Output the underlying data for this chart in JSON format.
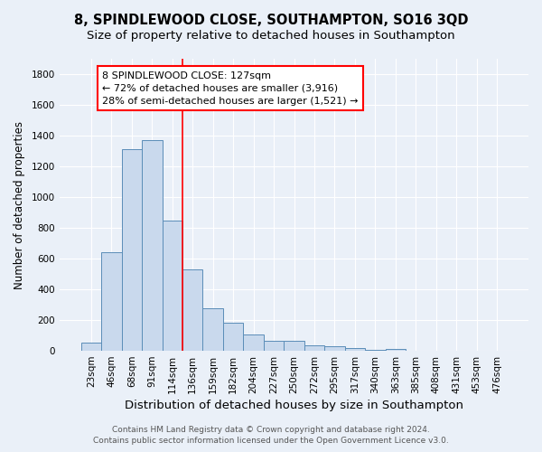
{
  "title": "8, SPINDLEWOOD CLOSE, SOUTHAMPTON, SO16 3QD",
  "subtitle": "Size of property relative to detached houses in Southampton",
  "xlabel": "Distribution of detached houses by size in Southampton",
  "ylabel": "Number of detached properties",
  "categories": [
    "23sqm",
    "46sqm",
    "68sqm",
    "91sqm",
    "114sqm",
    "136sqm",
    "159sqm",
    "182sqm",
    "204sqm",
    "227sqm",
    "250sqm",
    "272sqm",
    "295sqm",
    "317sqm",
    "340sqm",
    "363sqm",
    "385sqm",
    "408sqm",
    "431sqm",
    "453sqm",
    "476sqm"
  ],
  "values": [
    55,
    640,
    1310,
    1370,
    845,
    530,
    275,
    185,
    105,
    65,
    65,
    35,
    30,
    18,
    8,
    12,
    0,
    0,
    0,
    0,
    0
  ],
  "bar_color": "#c9d9ed",
  "bar_edge_color": "#5b8db8",
  "vline_color": "red",
  "vline_x_index": 4.5,
  "annotation_text": "8 SPINDLEWOOD CLOSE: 127sqm\n← 72% of detached houses are smaller (3,916)\n28% of semi-detached houses are larger (1,521) →",
  "annotation_box_color": "white",
  "annotation_box_edge_color": "red",
  "ylim": [
    0,
    1900
  ],
  "yticks": [
    0,
    200,
    400,
    600,
    800,
    1000,
    1200,
    1400,
    1600,
    1800
  ],
  "footer_line1": "Contains HM Land Registry data © Crown copyright and database right 2024.",
  "footer_line2": "Contains public sector information licensed under the Open Government Licence v3.0.",
  "background_color": "#eaf0f8",
  "grid_color": "white",
  "title_fontsize": 10.5,
  "subtitle_fontsize": 9.5,
  "xlabel_fontsize": 9.5,
  "ylabel_fontsize": 8.5,
  "tick_fontsize": 7.5,
  "annotation_fontsize": 8,
  "footer_fontsize": 6.5
}
